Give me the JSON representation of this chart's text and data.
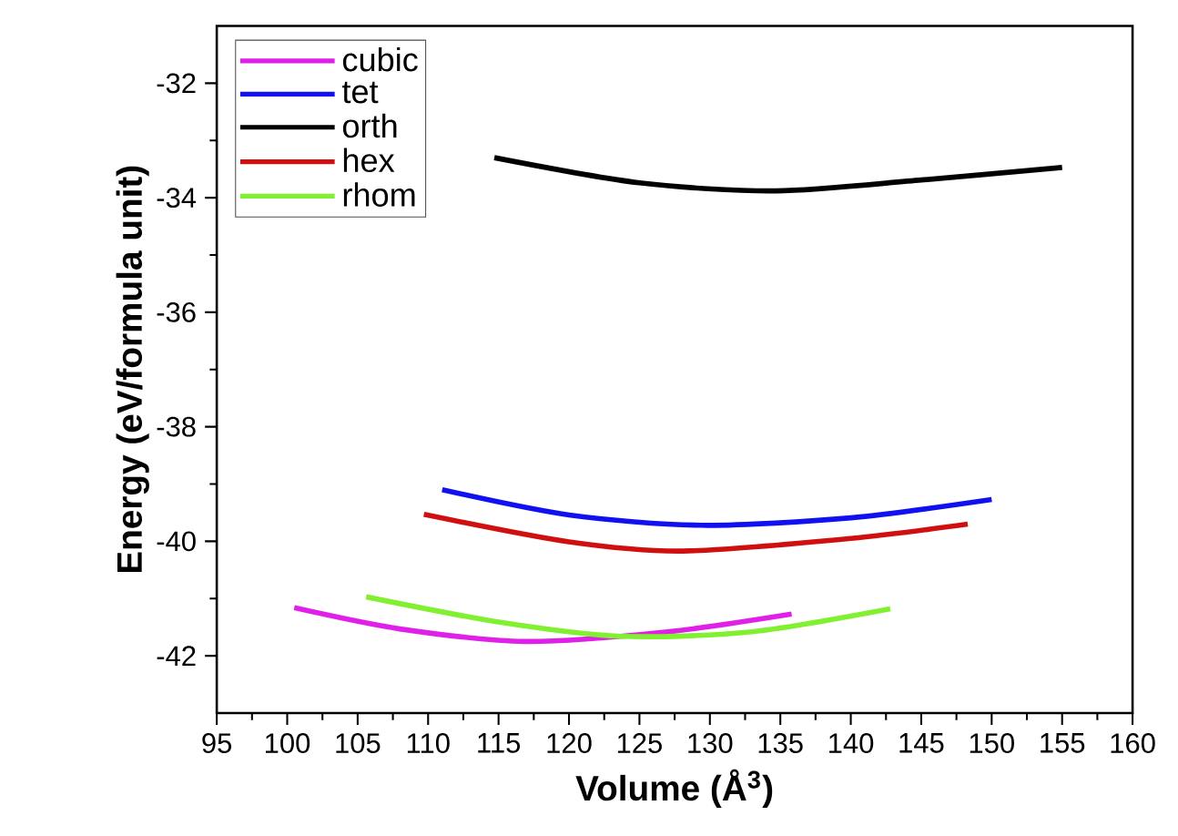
{
  "chart_data": {
    "type": "line",
    "xlabel": "Volume (Å$^{3}$)",
    "ylabel": "Energy (eV/formula unit)",
    "xlim": [
      95,
      160
    ],
    "xticks": [
      95,
      100,
      105,
      110,
      115,
      120,
      125,
      130,
      135,
      140,
      145,
      150,
      155,
      160
    ],
    "ylim": [
      -43,
      -31
    ],
    "yticks": [
      -32,
      -34,
      -36,
      -38,
      -40,
      -42
    ],
    "legend": "top left",
    "grid": false,
    "marker": "none",
    "line_style": "solid",
    "series": [
      {
        "name": "cubic",
        "color": "#e020e8",
        "x": [
          100.5,
          108,
          116.9,
          127,
          135.8
        ],
        "values": [
          -41.16,
          -41.53,
          -41.75,
          -41.58,
          -41.27
        ]
      },
      {
        "name": "tet",
        "color": "#1010f0",
        "x": [
          111.0,
          120,
          129.4,
          140,
          150.0
        ],
        "values": [
          -39.1,
          -39.54,
          -39.72,
          -39.59,
          -39.27
        ]
      },
      {
        "name": "orth",
        "color": "#000000",
        "x": [
          114.7,
          125,
          134.7,
          145,
          155.0
        ],
        "values": [
          -33.3,
          -33.74,
          -33.88,
          -33.69,
          -33.47
        ]
      },
      {
        "name": "hex",
        "color": "#d01010",
        "x": [
          109.7,
          120,
          128.1,
          140,
          148.3
        ],
        "values": [
          -39.53,
          -40.01,
          -40.17,
          -39.95,
          -39.7
        ]
      },
      {
        "name": "rhom",
        "color": "#80f030",
        "x": [
          105.6,
          115,
          123.7,
          133,
          142.8
        ],
        "values": [
          -40.97,
          -41.41,
          -41.66,
          -41.58,
          -41.18
        ]
      }
    ]
  }
}
